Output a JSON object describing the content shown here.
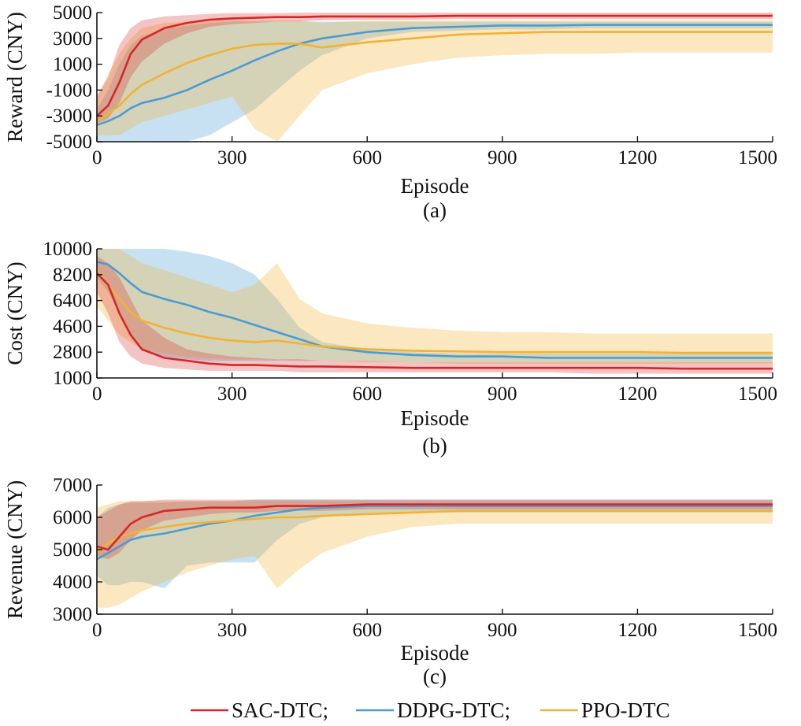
{
  "legend": {
    "entries": [
      "SAC-DTC;",
      "DDPG-DTC;",
      "PPO-DTC"
    ]
  },
  "series_colors": {
    "SAC-DTC": "#d62728",
    "DDPG-DTC": "#4a9bd4",
    "PPO-DTC": "#f2b233"
  },
  "chart_data": [
    {
      "type": "line",
      "caption": "(a)",
      "xlabel": "Episode",
      "ylabel": "Reward (CNY)",
      "xlim": [
        0,
        1500
      ],
      "ylim": [
        -5000,
        5000
      ],
      "xticks": [
        0,
        300,
        600,
        900,
        1200,
        1500
      ],
      "xtick_labels": [
        "0",
        "300",
        "600",
        "900",
        "1200",
        "1500"
      ],
      "yticks": [
        -5000,
        -3000,
        -1000,
        1000,
        3000,
        5000
      ],
      "ytick_labels": [
        "-5000",
        "-3000",
        "-1000",
        "1000",
        "3000",
        "5000"
      ],
      "x": [
        0,
        25,
        50,
        75,
        100,
        150,
        200,
        250,
        300,
        350,
        400,
        450,
        500,
        600,
        700,
        800,
        900,
        1000,
        1100,
        1200,
        1300,
        1400,
        1500
      ],
      "series": [
        {
          "name": "SAC-DTC",
          "values": [
            -3000,
            -2200,
            -400,
            1800,
            2900,
            3800,
            4200,
            4450,
            4550,
            4600,
            4650,
            4650,
            4700,
            4700,
            4700,
            4750,
            4750,
            4750,
            4750,
            4750,
            4750,
            4750,
            4750
          ],
          "band_low": [
            -3600,
            -3200,
            -2000,
            0,
            1200,
            2600,
            3400,
            3900,
            4100,
            4200,
            4300,
            4300,
            4400,
            4450,
            4450,
            4500,
            4500,
            4500,
            4500,
            4500,
            4500,
            4500,
            4500
          ],
          "band_high": [
            -1500,
            0,
            2500,
            3800,
            4400,
            4700,
            4800,
            4900,
            4950,
            4950,
            4950,
            5000,
            5000,
            5000,
            5000,
            5000,
            5000,
            5000,
            5000,
            5000,
            5000,
            5000,
            5000
          ]
        },
        {
          "name": "DDPG-DTC",
          "values": [
            -3700,
            -3400,
            -3000,
            -2400,
            -2000,
            -1600,
            -1000,
            -200,
            500,
            1300,
            2000,
            2600,
            3000,
            3500,
            3800,
            3900,
            4000,
            4000,
            4050,
            4050,
            4050,
            4050,
            4050
          ],
          "band_low": [
            -5000,
            -5000,
            -5000,
            -5000,
            -5000,
            -5000,
            -5000,
            -4500,
            -3500,
            -2500,
            -1000,
            500,
            1700,
            3000,
            3500,
            3600,
            3700,
            3700,
            3800,
            3800,
            3800,
            3800,
            3800
          ],
          "band_high": [
            -2500,
            -1000,
            1000,
            2500,
            3200,
            3700,
            4000,
            4200,
            4300,
            4300,
            4300,
            4300,
            4300,
            4300,
            4300,
            4300,
            4300,
            4300,
            4300,
            4300,
            4300,
            4300,
            4300
          ]
        },
        {
          "name": "PPO-DTC",
          "values": [
            -3500,
            -2800,
            -2200,
            -1300,
            -600,
            300,
            1100,
            1700,
            2200,
            2500,
            2600,
            2600,
            2300,
            2700,
            3000,
            3300,
            3400,
            3500,
            3500,
            3500,
            3500,
            3500,
            3500
          ],
          "band_low": [
            -4500,
            -4500,
            -4500,
            -4000,
            -3500,
            -3000,
            -2500,
            -2000,
            -1500,
            -4000,
            -5000,
            -3000,
            -1000,
            300,
            1000,
            1500,
            1700,
            1800,
            1800,
            1900,
            1900,
            1900,
            1900
          ],
          "band_high": [
            -1500,
            200,
            1800,
            3000,
            3800,
            4200,
            4300,
            4400,
            4400,
            4400,
            4400,
            4400,
            4200,
            4400,
            4400,
            4400,
            4400,
            4400,
            4400,
            4400,
            4400,
            4400,
            4400
          ]
        }
      ]
    },
    {
      "type": "line",
      "caption": "(b)",
      "xlabel": "Episode",
      "ylabel": "Cost (CNY)",
      "xlim": [
        0,
        1500
      ],
      "ylim": [
        1000,
        10000
      ],
      "xticks": [
        0,
        300,
        600,
        900,
        1200,
        1500
      ],
      "xtick_labels": [
        "0",
        "300",
        "600",
        "900",
        "1200",
        "1500"
      ],
      "yticks": [
        1000,
        2800,
        4600,
        6400,
        8200,
        10000
      ],
      "ytick_labels": [
        "1000",
        "2800",
        "4600",
        "6400",
        "8200",
        "10000"
      ],
      "x": [
        0,
        25,
        50,
        75,
        100,
        150,
        200,
        250,
        300,
        350,
        400,
        450,
        500,
        600,
        700,
        800,
        900,
        1000,
        1100,
        1200,
        1300,
        1400,
        1500
      ],
      "series": [
        {
          "name": "SAC-DTC",
          "values": [
            8300,
            7500,
            5500,
            4000,
            3000,
            2400,
            2200,
            2000,
            1900,
            1900,
            1850,
            1800,
            1800,
            1750,
            1700,
            1700,
            1700,
            1700,
            1700,
            1700,
            1650,
            1650,
            1650
          ],
          "band_low": [
            7000,
            5500,
            3500,
            2500,
            2000,
            1700,
            1600,
            1500,
            1500,
            1500,
            1500,
            1400,
            1400,
            1400,
            1400,
            1400,
            1400,
            1400,
            1300,
            1300,
            1300,
            1300,
            1300
          ],
          "band_high": [
            9500,
            9000,
            8000,
            6500,
            5000,
            3800,
            3000,
            2700,
            2500,
            2400,
            2300,
            2300,
            2200,
            2200,
            2100,
            2100,
            2100,
            2100,
            2100,
            2100,
            2100,
            2100,
            2100
          ]
        },
        {
          "name": "DDPG-DTC",
          "values": [
            9100,
            8900,
            8300,
            7600,
            7000,
            6500,
            6100,
            5600,
            5200,
            4700,
            4200,
            3700,
            3200,
            2800,
            2600,
            2500,
            2500,
            2400,
            2400,
            2400,
            2400,
            2400,
            2400
          ],
          "band_low": [
            8000,
            7000,
            5500,
            4000,
            3000,
            2500,
            2300,
            2200,
            2200,
            2200,
            2200,
            2200,
            2200,
            2200,
            2100,
            2100,
            2100,
            2100,
            2100,
            2100,
            2100,
            2100,
            2100
          ],
          "band_high": [
            10000,
            10000,
            10000,
            10000,
            10000,
            10000,
            9800,
            9500,
            9000,
            8200,
            6500,
            4500,
            3500,
            3000,
            2800,
            2700,
            2700,
            2700,
            2700,
            2700,
            2700,
            2700,
            2700
          ]
        },
        {
          "name": "PPO-DTC",
          "values": [
            8500,
            7500,
            6500,
            5600,
            5000,
            4500,
            4100,
            3800,
            3600,
            3500,
            3600,
            3400,
            3200,
            3000,
            2900,
            2850,
            2800,
            2800,
            2800,
            2800,
            2750,
            2750,
            2750
          ],
          "band_low": [
            6000,
            5000,
            4000,
            3500,
            3000,
            2700,
            2500,
            2400,
            2300,
            2300,
            2300,
            2200,
            2200,
            2100,
            2100,
            2000,
            2000,
            2000,
            2000,
            2000,
            2000,
            2000,
            2000
          ],
          "band_high": [
            10000,
            10000,
            10000,
            9500,
            9000,
            8500,
            8000,
            7500,
            7000,
            7500,
            9000,
            6500,
            5500,
            4800,
            4500,
            4300,
            4200,
            4200,
            4100,
            4100,
            4100,
            4100,
            4100
          ]
        }
      ]
    },
    {
      "type": "line",
      "caption": "(c)",
      "xlabel": "Episode",
      "ylabel": "Revenue (CNY)",
      "xlim": [
        0,
        1500
      ],
      "ylim": [
        3000,
        7000
      ],
      "xticks": [
        0,
        300,
        600,
        900,
        1200,
        1500
      ],
      "xtick_labels": [
        "0",
        "300",
        "600",
        "900",
        "1200",
        "1500"
      ],
      "yticks": [
        3000,
        4000,
        5000,
        6000,
        7000
      ],
      "ytick_labels": [
        "3000",
        "4000",
        "5000",
        "6000",
        "7000"
      ],
      "x": [
        0,
        25,
        50,
        75,
        100,
        150,
        200,
        250,
        300,
        350,
        400,
        450,
        500,
        600,
        700,
        800,
        900,
        1000,
        1100,
        1200,
        1300,
        1400,
        1500
      ],
      "series": [
        {
          "name": "SAC-DTC",
          "values": [
            5100,
            5000,
            5400,
            5800,
            6000,
            6200,
            6250,
            6300,
            6300,
            6300,
            6350,
            6350,
            6350,
            6400,
            6400,
            6400,
            6400,
            6400,
            6400,
            6400,
            6400,
            6400,
            6400
          ],
          "band_low": [
            4800,
            4700,
            4900,
            5300,
            5600,
            5900,
            6000,
            6100,
            6150,
            6150,
            6200,
            6200,
            6200,
            6250,
            6250,
            6250,
            6250,
            6250,
            6250,
            6250,
            6250,
            6250,
            6250
          ],
          "band_high": [
            6000,
            6200,
            6400,
            6500,
            6500,
            6550,
            6550,
            6550,
            6550,
            6550,
            6550,
            6550,
            6550,
            6550,
            6550,
            6550,
            6550,
            6550,
            6550,
            6550,
            6550,
            6550,
            6550
          ]
        },
        {
          "name": "DDPG-DTC",
          "values": [
            4700,
            4900,
            5100,
            5300,
            5400,
            5500,
            5650,
            5800,
            5900,
            6050,
            6150,
            6250,
            6300,
            6350,
            6350,
            6350,
            6350,
            6350,
            6350,
            6350,
            6350,
            6350,
            6350
          ],
          "band_low": [
            4200,
            3900,
            3900,
            4000,
            4000,
            3800,
            4500,
            4600,
            4600,
            4600,
            5300,
            5800,
            6000,
            6100,
            6150,
            6150,
            6150,
            6150,
            6150,
            6150,
            6150,
            6150,
            6150
          ],
          "band_high": [
            6000,
            6300,
            6400,
            6450,
            6450,
            6450,
            6500,
            6500,
            6500,
            6550,
            6550,
            6550,
            6550,
            6550,
            6550,
            6550,
            6550,
            6550,
            6550,
            6550,
            6550,
            6550,
            6550
          ]
        },
        {
          "name": "PPO-DTC",
          "values": [
            4900,
            5200,
            5400,
            5500,
            5600,
            5700,
            5800,
            5850,
            5900,
            5950,
            6000,
            6000,
            6050,
            6100,
            6150,
            6200,
            6200,
            6200,
            6200,
            6200,
            6200,
            6200,
            6200
          ],
          "band_low": [
            3200,
            3200,
            3300,
            3500,
            3700,
            4000,
            4300,
            4500,
            4700,
            4800,
            3800,
            4400,
            4900,
            5400,
            5700,
            5800,
            5800,
            5800,
            5800,
            5800,
            5800,
            5800,
            5800
          ],
          "band_high": [
            6300,
            6400,
            6500,
            6500,
            6500,
            6500,
            6500,
            6500,
            6500,
            6500,
            6500,
            6500,
            6500,
            6500,
            6500,
            6500,
            6500,
            6500,
            6500,
            6500,
            6500,
            6500,
            6500
          ]
        }
      ]
    }
  ]
}
